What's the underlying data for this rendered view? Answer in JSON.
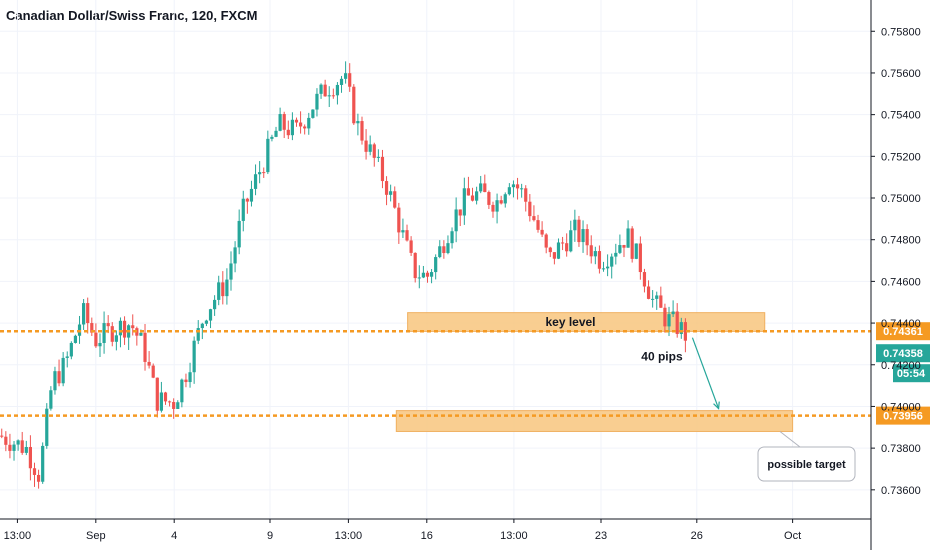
{
  "title": "Canadian Dollar/Swiss Franc, 120, FXCM",
  "chart_data": {
    "type": "candlestick",
    "symbol": "Canadian Dollar/Swiss Franc",
    "interval": "120",
    "source": "FXCM",
    "y_ticks": [
      0.736,
      0.738,
      0.74,
      0.742,
      0.744,
      0.746,
      0.748,
      0.75,
      0.752,
      0.754,
      0.756,
      0.758
    ],
    "y_tick_labels": [
      "0.73600",
      "0.73800",
      "0.74000",
      "0.74200",
      "0.74400",
      "0.74600",
      "0.74800",
      "0.75000",
      "0.75200",
      "0.75400",
      "0.75600",
      "0.75800"
    ],
    "ylim": [
      0.7346,
      0.7595
    ],
    "x_ticks": [
      {
        "label": "13:00",
        "t": 0.02
      },
      {
        "label": "Sep",
        "t": 0.11
      },
      {
        "label": "4",
        "t": 0.2
      },
      {
        "label": "9",
        "t": 0.31
      },
      {
        "label": "13:00",
        "t": 0.4
      },
      {
        "label": "16",
        "t": 0.49
      },
      {
        "label": "13:00",
        "t": 0.59
      },
      {
        "label": "23",
        "t": 0.69
      },
      {
        "label": "26",
        "t": 0.8
      },
      {
        "label": "Oct",
        "t": 0.91
      }
    ],
    "price_path": [
      [
        0.0,
        0.7386
      ],
      [
        0.03,
        0.738
      ],
      [
        0.045,
        0.7367
      ],
      [
        0.06,
        0.7412
      ],
      [
        0.075,
        0.742
      ],
      [
        0.095,
        0.7445
      ],
      [
        0.11,
        0.7432
      ],
      [
        0.13,
        0.7437
      ],
      [
        0.15,
        0.744
      ],
      [
        0.165,
        0.7428
      ],
      [
        0.18,
        0.7403
      ],
      [
        0.2,
        0.7402
      ],
      [
        0.215,
        0.7418
      ],
      [
        0.235,
        0.7445
      ],
      [
        0.26,
        0.746
      ],
      [
        0.28,
        0.7495
      ],
      [
        0.3,
        0.7515
      ],
      [
        0.32,
        0.7535
      ],
      [
        0.34,
        0.7532
      ],
      [
        0.36,
        0.7545
      ],
      [
        0.375,
        0.7553
      ],
      [
        0.395,
        0.7558
      ],
      [
        0.41,
        0.7535
      ],
      [
        0.43,
        0.7518
      ],
      [
        0.445,
        0.7505
      ],
      [
        0.46,
        0.7485
      ],
      [
        0.475,
        0.7465
      ],
      [
        0.49,
        0.7462
      ],
      [
        0.505,
        0.7475
      ],
      [
        0.52,
        0.749
      ],
      [
        0.535,
        0.75
      ],
      [
        0.55,
        0.7502
      ],
      [
        0.57,
        0.7498
      ],
      [
        0.585,
        0.751
      ],
      [
        0.6,
        0.7502
      ],
      [
        0.615,
        0.7488
      ],
      [
        0.63,
        0.747
      ],
      [
        0.645,
        0.7478
      ],
      [
        0.66,
        0.7484
      ],
      [
        0.675,
        0.7478
      ],
      [
        0.69,
        0.747
      ],
      [
        0.705,
        0.7476
      ],
      [
        0.72,
        0.7482
      ],
      [
        0.735,
        0.7468
      ],
      [
        0.75,
        0.745
      ],
      [
        0.765,
        0.7442
      ],
      [
        0.78,
        0.7438
      ],
      [
        0.79,
        0.7433
      ]
    ],
    "last_candle_t": 0.79,
    "colors": {
      "up": "#26a69a",
      "down": "#ef5350",
      "level": "#f59a23",
      "zone": "#f8c57e",
      "current_price": "#26a69a",
      "arrow": "#26a69a"
    }
  },
  "levels": [
    {
      "price": 0.74361,
      "label": "0.74361"
    },
    {
      "price": 0.73956,
      "label": "0.73956"
    }
  ],
  "current_price": {
    "label": "0.74358",
    "countdown": "05:54"
  },
  "annotations": {
    "key_level_label": "key level",
    "pips_label": "40 pips",
    "target_label": "possible target",
    "key_zone": {
      "from_t": 0.468,
      "to_t": 0.878,
      "low": 0.7436,
      "high": 0.7445
    },
    "target_zone": {
      "from_t": 0.455,
      "to_t": 0.91,
      "low": 0.7388,
      "high": 0.7398
    },
    "arrow": {
      "from_t": 0.795,
      "from_price": 0.7433,
      "to_t": 0.825,
      "to_price": 0.7399
    }
  }
}
